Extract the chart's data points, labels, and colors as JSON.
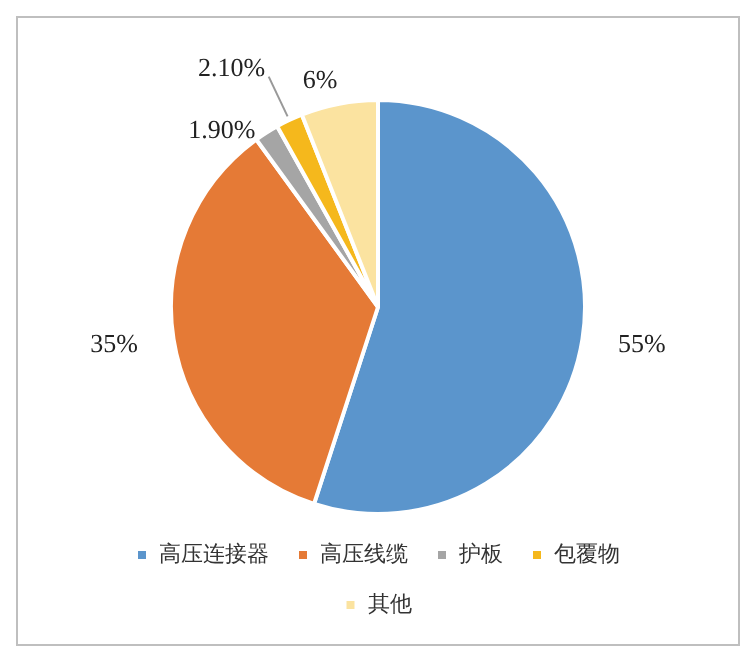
{
  "chart_data": {
    "type": "pie",
    "categories": [
      "高压连接器",
      "高压线缆",
      "护板",
      "包覆物",
      "其他"
    ],
    "values": [
      55,
      35,
      1.9,
      2.1,
      6
    ],
    "colors": [
      "#5b95cc",
      "#e57a36",
      "#a5a5a5",
      "#f5b81c",
      "#fbe3a0"
    ],
    "value_labels": [
      "55%",
      "35%",
      "1.90%",
      "2.10%",
      "6%"
    ],
    "legend": "bottom"
  }
}
